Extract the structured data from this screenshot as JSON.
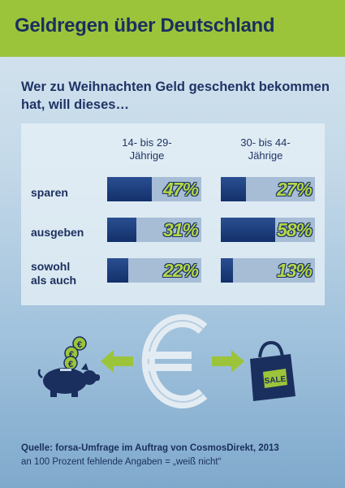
{
  "header": {
    "title": "Geldregen über Deutschland"
  },
  "lead": "Wer zu Weihnachten Geld geschenkt bekommen hat, will dieses…",
  "chart_data": {
    "type": "bar",
    "categories": [
      "sparen",
      "ausgeben",
      "sowohl als auch"
    ],
    "series": [
      {
        "name": "14- bis 29-Jährige",
        "values": [
          47,
          31,
          22
        ],
        "labels": [
          "47%",
          "31%",
          "22%"
        ]
      },
      {
        "name": "30- bis 44-Jährige",
        "values": [
          27,
          58,
          13
        ],
        "labels": [
          "27%",
          "58%",
          "13%"
        ]
      }
    ],
    "unit": "%",
    "ylim": [
      0,
      100
    ],
    "colors": {
      "bar": "#1a3a7a",
      "track": "#a7bdd6",
      "value_text": "#b6d548"
    }
  },
  "columns": {
    "group1_line1": "14- bis 29-",
    "group1_line2": "Jährige",
    "group2_line1": "30- bis 44-",
    "group2_line2": "Jährige"
  },
  "rows": {
    "r1": "sparen",
    "r2": "ausgeben",
    "r3_line1": "sowohl",
    "r3_line2": "als auch"
  },
  "illustration": {
    "left_icon": "piggy-bank-icon",
    "center_icon": "euro-sign-icon",
    "right_icon": "shopping-bag-icon",
    "bag_text": "SALE",
    "colors": {
      "green": "#9cc43a",
      "navy": "#1a2f5e"
    }
  },
  "footer": {
    "source": "Quelle: forsa-Umfrage im Auftrag von CosmosDirekt, 2013",
    "note": "an 100 Prozent fehlende Angaben = „weiß nicht“"
  },
  "colors": {
    "header_bg": "#9cc43a",
    "title_text": "#1a2f5e"
  }
}
